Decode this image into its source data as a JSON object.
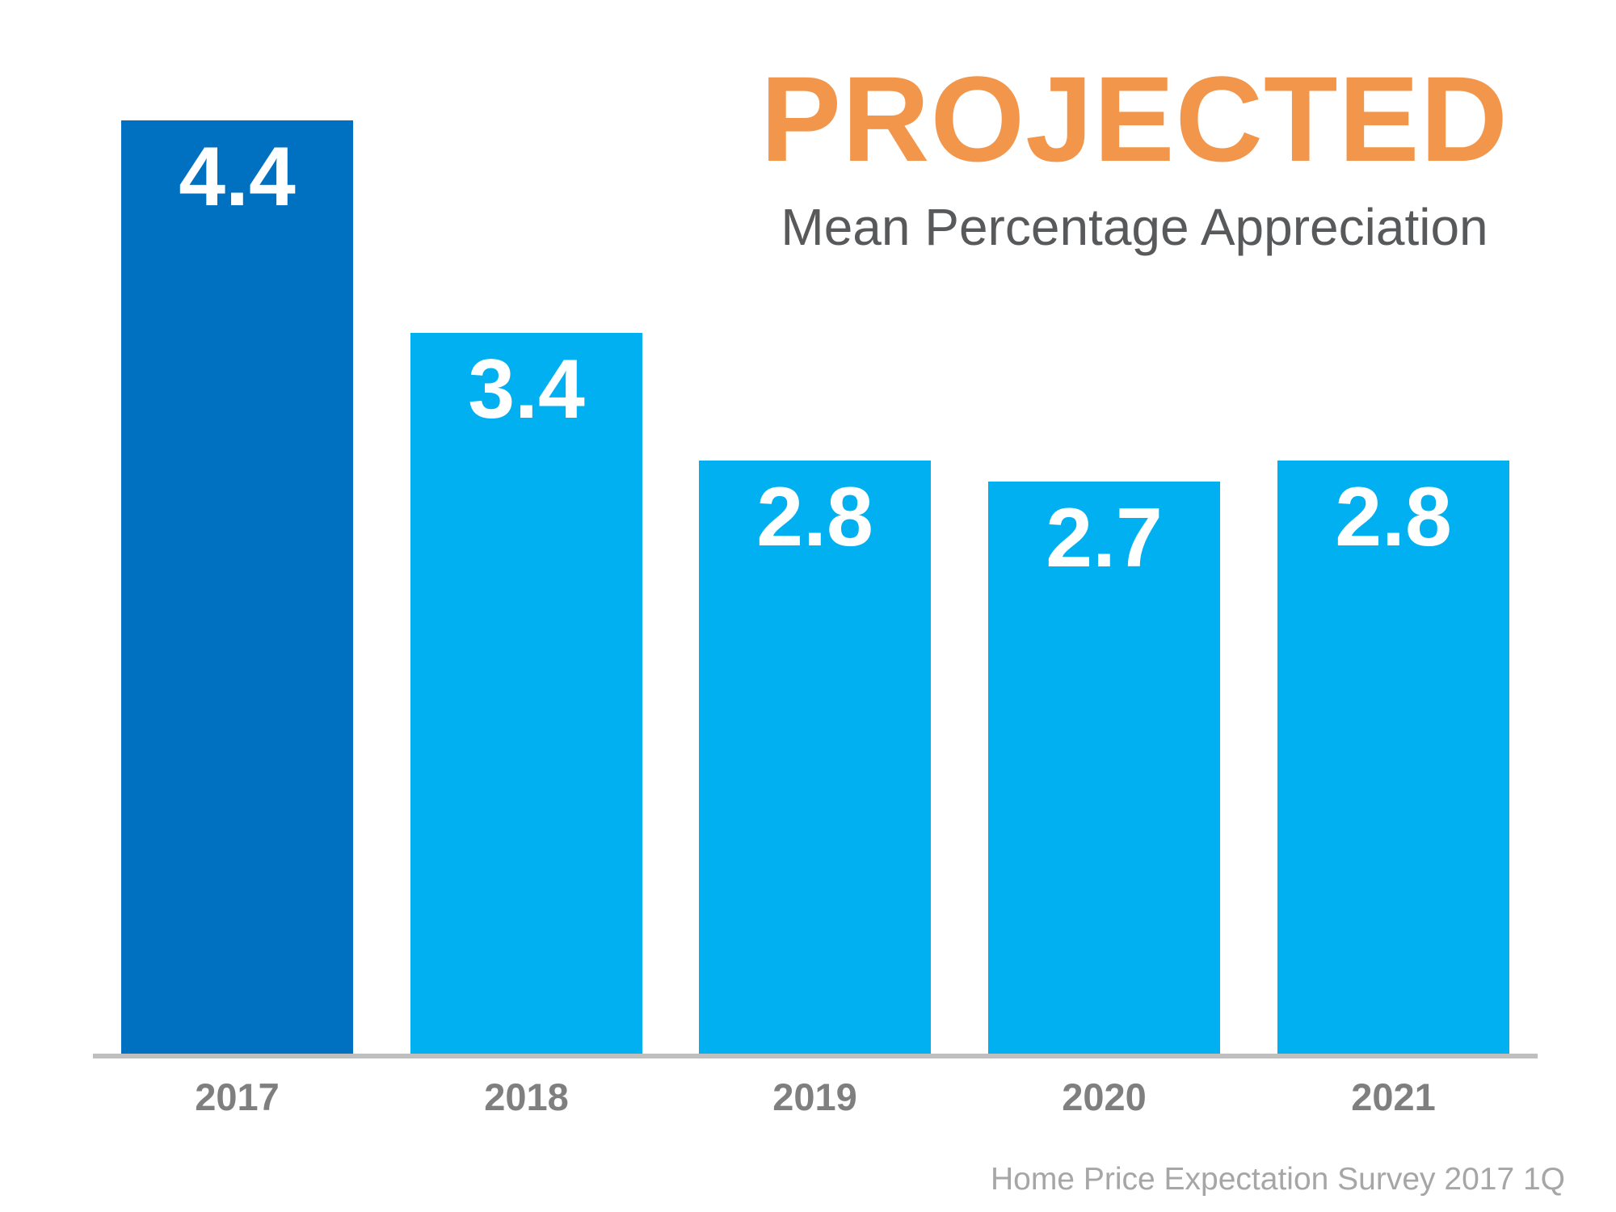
{
  "chart_data": {
    "type": "bar",
    "title": "PROJECTED",
    "subtitle": "Mean Percentage Appreciation",
    "source": "Home Price Expectation Survey 2017 1Q",
    "categories": [
      "2017",
      "2018",
      "2019",
      "2020",
      "2021"
    ],
    "values": [
      4.4,
      3.4,
      2.8,
      2.7,
      2.8
    ],
    "value_labels": [
      "4.4",
      "3.4",
      "2.8",
      "2.7",
      "2.8"
    ],
    "ylim": [
      0,
      4.6
    ],
    "grid": false,
    "legend": false,
    "xlabel": "",
    "ylabel": "",
    "bar_colors": [
      "#0070C0",
      "#00B0F0",
      "#00B0F0",
      "#00B0F0",
      "#00B0F0"
    ],
    "colors": {
      "highlight_bar": "#0070C0",
      "default_bar": "#00B0F0",
      "title": "#F2964C",
      "subtitle": "#58595B",
      "value_label": "#FFFFFF",
      "category_label": "#7F7F7F",
      "source": "#A6A6A6",
      "axis_line": "#BFBFBF",
      "background": "#FFFFFF"
    }
  }
}
